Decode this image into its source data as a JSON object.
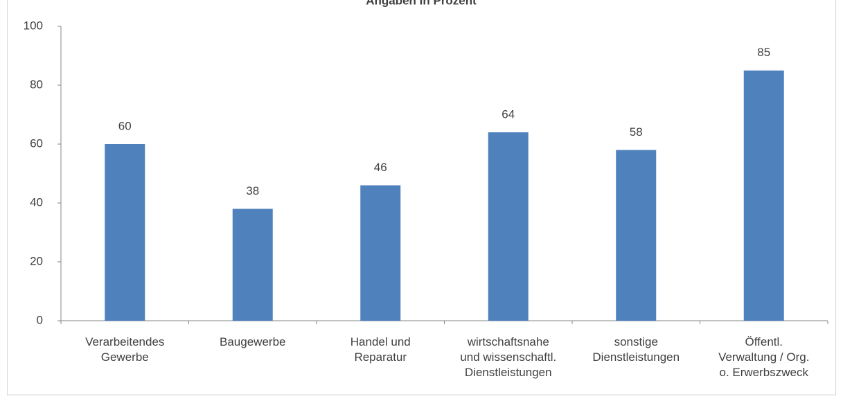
{
  "chart_data": {
    "type": "bar",
    "title": "Angaben in Prozent",
    "categories": [
      "Verarbeitendes\nGewerbe",
      "Baugewerbe",
      "Handel und\nReparatur",
      "wirtschaftsnahe\nund wissenschaftl.\nDienstleistungen",
      "sonstige\nDienstleistungen",
      "Öffentl.\nVerwaltung / Org.\no. Erwerbszweck"
    ],
    "values": [
      60,
      38,
      46,
      64,
      58,
      85
    ],
    "color": "#4f81bd",
    "ylim": [
      0,
      100
    ],
    "yticks": [
      0,
      20,
      40,
      60,
      80,
      100
    ],
    "grid": false
  }
}
